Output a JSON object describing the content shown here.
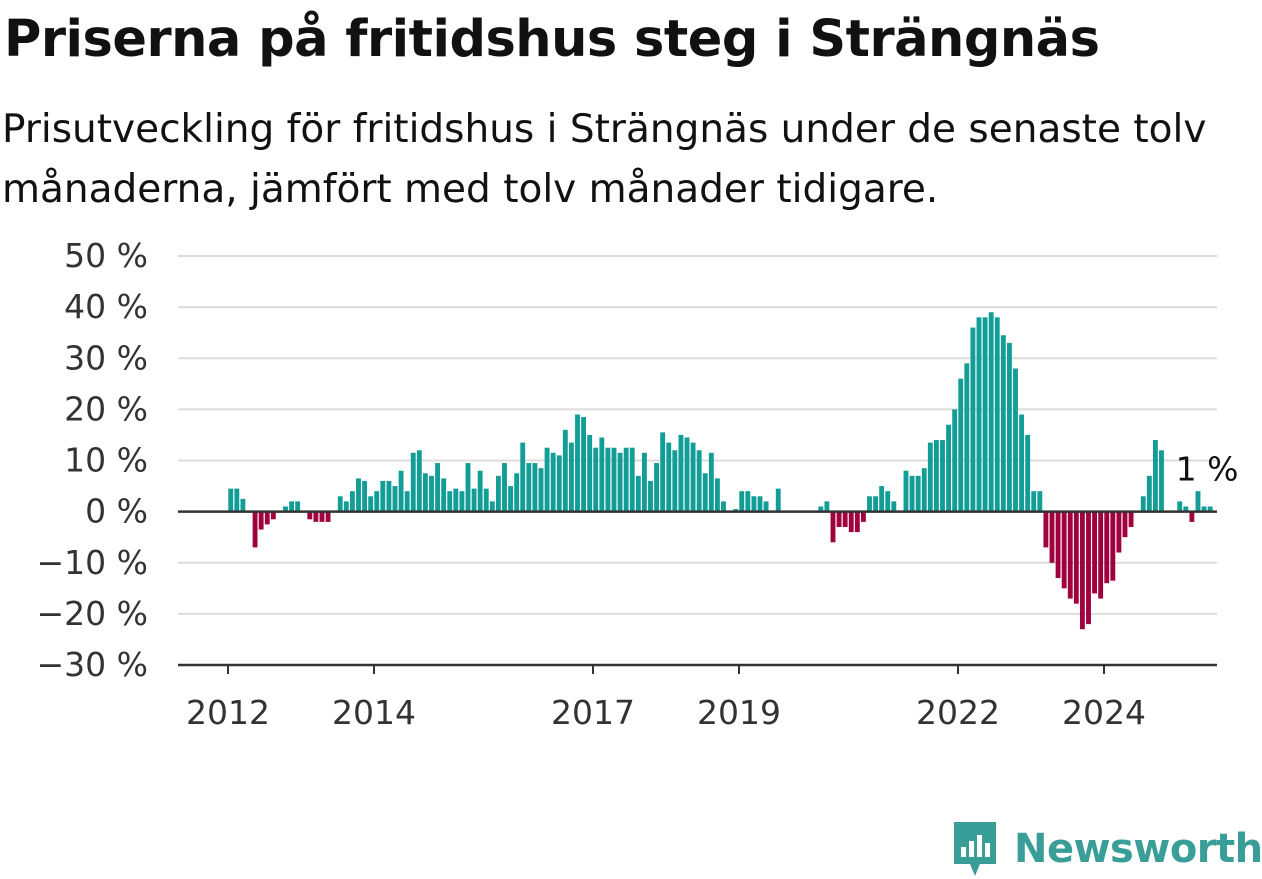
{
  "title": "Priserna på fritidshus steg i Strängnäs",
  "subtitle": "Prisutveckling för fritidshus i Strängnäs under de senaste tolv månaderna, jämfört med tolv månader tidigare.",
  "brand": {
    "name": "Newsworthy",
    "color": "#3a9e98"
  },
  "colors": {
    "positive": "#129e96",
    "negative": "#a0003e",
    "grid": "#dcdcdc",
    "zero": "#333333"
  },
  "chart_data": {
    "type": "bar",
    "ylim": [
      -30,
      50
    ],
    "yticks": [
      {
        "value": 50,
        "label": "50 %"
      },
      {
        "value": 40,
        "label": "40 %"
      },
      {
        "value": 30,
        "label": "30 %"
      },
      {
        "value": 20,
        "label": "20 %"
      },
      {
        "value": 10,
        "label": "10 %"
      },
      {
        "value": 0,
        "label": "0 %"
      },
      {
        "value": -10,
        "label": "−10 %"
      },
      {
        "value": -20,
        "label": "−20 %"
      },
      {
        "value": -30,
        "label": "−30 %"
      }
    ],
    "xticks": [
      {
        "year": 2012,
        "label": "2012"
      },
      {
        "year": 2014,
        "label": "2014"
      },
      {
        "year": 2017,
        "label": "2017"
      },
      {
        "year": 2019,
        "label": "2019"
      },
      {
        "year": 2022,
        "label": "2022"
      },
      {
        "year": 2024,
        "label": "2024"
      }
    ],
    "series": [
      {
        "start": "2012-01",
        "values": [
          4.5,
          4.5,
          2.5,
          0,
          -7,
          -3.5,
          -2.5,
          -1.5,
          0,
          1,
          2,
          2,
          0,
          -1.5,
          -2,
          -2,
          -2,
          0,
          3,
          2,
          4,
          6.5,
          6,
          3,
          4,
          6,
          6,
          5,
          8,
          4,
          11.5,
          12,
          7.5,
          7,
          9.5,
          6.5,
          4,
          4.5,
          4,
          9.5,
          4.5,
          8,
          4.5,
          2,
          7,
          9.5,
          5,
          7.5,
          13.5,
          9.5,
          9.5,
          8.5,
          12.5,
          11.5,
          11,
          16,
          13.5,
          19,
          18.5,
          15,
          12.5,
          14.5,
          12.5,
          12.5,
          11.5,
          12.5,
          12.5,
          7,
          11.5,
          6,
          9.5,
          15.5,
          13.5,
          12,
          15,
          14.5,
          13.5,
          12,
          7.5,
          11.5,
          6.5,
          2,
          0,
          0.5,
          4,
          4,
          3,
          3,
          2,
          0,
          4.5,
          0,
          0,
          0,
          0,
          0,
          0,
          1,
          2,
          -6,
          -3,
          -3,
          -4,
          -4,
          -2,
          3,
          3,
          5,
          4,
          2,
          0,
          8,
          7,
          7,
          8.5,
          13.5,
          14,
          14,
          17,
          20,
          26,
          29,
          36,
          38,
          38,
          39,
          38,
          34.5,
          33,
          28,
          19,
          15,
          4,
          4,
          -7,
          -10,
          -13,
          -15,
          -17,
          -18,
          -23,
          -22,
          -16,
          -17,
          -14,
          -13.5,
          -8,
          -5,
          -3,
          0,
          3,
          7,
          14,
          12,
          0,
          0,
          2,
          1,
          -2,
          4,
          1,
          1
        ]
      }
    ],
    "annotation": {
      "text": "1 %"
    }
  }
}
